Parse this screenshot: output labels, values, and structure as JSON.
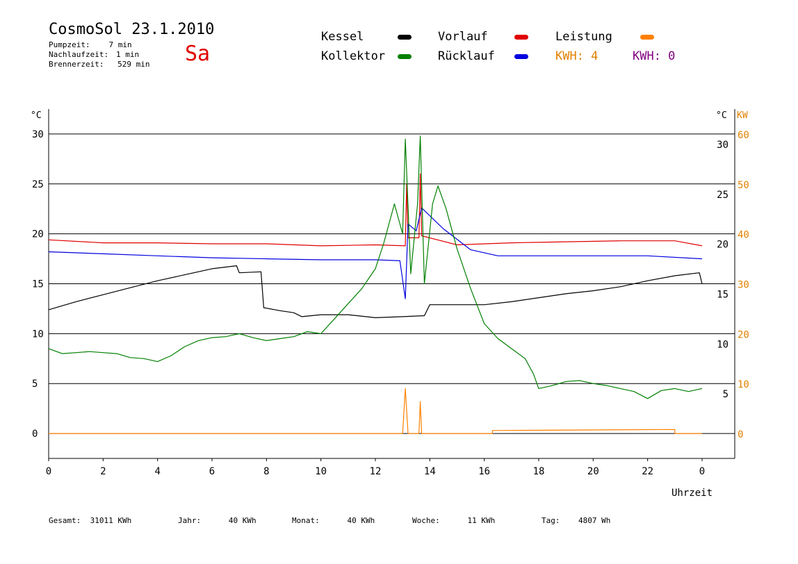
{
  "header": {
    "title": "CosmoSol 23.1.2010",
    "day": "Sa",
    "stats": [
      {
        "label": "Pumpzeit:",
        "value": "7 min"
      },
      {
        "label": "Nachlaufzeit:",
        "value": "1 min"
      },
      {
        "label": "Brennerzeit:",
        "value": "529 min"
      }
    ]
  },
  "legend": {
    "kessel": {
      "label": "Kessel",
      "color": "#000000"
    },
    "vorlauf": {
      "label": "Vorlauf",
      "color": "#e00000"
    },
    "leistung": {
      "label": "Leistung",
      "color": "#ff8000"
    },
    "kollektor": {
      "label": "Kollektor",
      "color": "#008000"
    },
    "ruecklauf": {
      "label": "Rücklauf",
      "color": "#0000e0"
    },
    "kwh1": {
      "label": "KWH: 4",
      "color": "#e08000"
    },
    "kwh2": {
      "label": "KWH: 0",
      "color": "#800080"
    }
  },
  "footer": [
    {
      "label": "Gesamt:",
      "value": "31011 KWh"
    },
    {
      "label": "Jahr:",
      "value": "40 KWh"
    },
    {
      "label": "Monat:",
      "value": "40 KWh"
    },
    {
      "label": "Woche:",
      "value": "11 KWh"
    },
    {
      "label": "Tag:",
      "value": "4807 Wh"
    }
  ],
  "chart_data": {
    "type": "line",
    "xlabel": "Uhrzeit",
    "ylabel_left": "°C",
    "ylabel_right": "°C",
    "ylabel_right2": "KW",
    "xlim": [
      0,
      24
    ],
    "ylim": [
      -2.5,
      32.5
    ],
    "x_ticks": [
      "0",
      "2",
      "4",
      "6",
      "8",
      "10",
      "12",
      "14",
      "16",
      "18",
      "20",
      "22",
      "0"
    ],
    "y_ticks": [
      0,
      5,
      10,
      15,
      20,
      25,
      30
    ],
    "y_ticks_right": [
      5,
      10,
      15,
      20,
      25,
      30
    ],
    "y_ticks_kw": [
      0,
      10,
      20,
      30,
      40,
      50,
      60
    ],
    "grid": "horizontal",
    "series": [
      {
        "name": "Kessel",
        "color": "#000000",
        "points": [
          [
            0,
            12.4
          ],
          [
            1,
            13.2
          ],
          [
            2,
            13.9
          ],
          [
            3,
            14.6
          ],
          [
            4,
            15.3
          ],
          [
            5,
            15.9
          ],
          [
            6,
            16.5
          ],
          [
            6.9,
            16.8
          ],
          [
            7,
            16.1
          ],
          [
            7.8,
            16.2
          ],
          [
            7.9,
            12.6
          ],
          [
            8.5,
            12.3
          ],
          [
            9,
            12.1
          ],
          [
            9.3,
            11.7
          ],
          [
            10,
            11.9
          ],
          [
            11,
            11.9
          ],
          [
            12,
            11.6
          ],
          [
            13,
            11.7
          ],
          [
            13.8,
            11.8
          ],
          [
            14,
            12.9
          ],
          [
            15,
            12.9
          ],
          [
            16,
            12.9
          ],
          [
            17,
            13.2
          ],
          [
            18,
            13.6
          ],
          [
            19,
            14.0
          ],
          [
            20,
            14.3
          ],
          [
            21,
            14.7
          ],
          [
            22,
            15.3
          ],
          [
            23,
            15.8
          ],
          [
            23.9,
            16.1
          ],
          [
            24,
            15.0
          ]
        ]
      },
      {
        "name": "Vorlauf",
        "color": "#e00000",
        "points": [
          [
            0,
            19.4
          ],
          [
            2,
            19.1
          ],
          [
            4,
            19.1
          ],
          [
            6,
            19.0
          ],
          [
            8,
            19.0
          ],
          [
            10,
            18.8
          ],
          [
            12,
            18.9
          ],
          [
            13.1,
            18.8
          ],
          [
            13.15,
            25.0
          ],
          [
            13.2,
            19.6
          ],
          [
            13.6,
            19.6
          ],
          [
            13.65,
            26.0
          ],
          [
            13.7,
            19.8
          ],
          [
            15,
            18.9
          ],
          [
            17,
            19.1
          ],
          [
            19,
            19.2
          ],
          [
            21,
            19.3
          ],
          [
            23,
            19.3
          ],
          [
            24,
            18.8
          ]
        ]
      },
      {
        "name": "Rücklauf",
        "color": "#0000e0",
        "points": [
          [
            0,
            18.2
          ],
          [
            2,
            18.0
          ],
          [
            4,
            17.8
          ],
          [
            6,
            17.6
          ],
          [
            8,
            17.5
          ],
          [
            10,
            17.4
          ],
          [
            12,
            17.4
          ],
          [
            12.9,
            17.3
          ],
          [
            13.1,
            13.5
          ],
          [
            13.2,
            21.0
          ],
          [
            13.5,
            20.3
          ],
          [
            13.7,
            22.6
          ],
          [
            14.5,
            20.5
          ],
          [
            15.5,
            18.4
          ],
          [
            16.5,
            17.8
          ],
          [
            18,
            17.8
          ],
          [
            20,
            17.8
          ],
          [
            22,
            17.8
          ],
          [
            24,
            17.5
          ]
        ]
      },
      {
        "name": "Kollektor",
        "color": "#008000",
        "points": [
          [
            0,
            8.5
          ],
          [
            0.5,
            8.0
          ],
          [
            1,
            8.1
          ],
          [
            1.5,
            8.2
          ],
          [
            2,
            8.1
          ],
          [
            2.5,
            8.0
          ],
          [
            3,
            7.6
          ],
          [
            3.5,
            7.5
          ],
          [
            4,
            7.2
          ],
          [
            4.5,
            7.8
          ],
          [
            5,
            8.7
          ],
          [
            5.5,
            9.3
          ],
          [
            6,
            9.6
          ],
          [
            6.5,
            9.7
          ],
          [
            7,
            10.0
          ],
          [
            7.5,
            9.6
          ],
          [
            8,
            9.3
          ],
          [
            8.5,
            9.5
          ],
          [
            9,
            9.7
          ],
          [
            9.5,
            10.2
          ],
          [
            10,
            10.0
          ],
          [
            10.5,
            11.5
          ],
          [
            11,
            13.0
          ],
          [
            11.5,
            14.5
          ],
          [
            12,
            16.5
          ],
          [
            12.3,
            19.0
          ],
          [
            12.7,
            23.0
          ],
          [
            13,
            20.0
          ],
          [
            13.1,
            29.5
          ],
          [
            13.3,
            16.0
          ],
          [
            13.55,
            23.0
          ],
          [
            13.65,
            29.8
          ],
          [
            13.8,
            15.0
          ],
          [
            14.1,
            23.0
          ],
          [
            14.3,
            24.8
          ],
          [
            14.6,
            22.5
          ],
          [
            15,
            18.5
          ],
          [
            15.5,
            14.5
          ],
          [
            16,
            11.0
          ],
          [
            16.5,
            9.5
          ],
          [
            17,
            8.5
          ],
          [
            17.5,
            7.5
          ],
          [
            17.8,
            6.0
          ],
          [
            18,
            4.5
          ],
          [
            18.5,
            4.8
          ],
          [
            19,
            5.2
          ],
          [
            19.5,
            5.3
          ],
          [
            20,
            5.0
          ],
          [
            20.5,
            4.8
          ],
          [
            21,
            4.5
          ],
          [
            21.5,
            4.2
          ],
          [
            22,
            3.5
          ],
          [
            22.5,
            4.3
          ],
          [
            23,
            4.5
          ],
          [
            23.5,
            4.2
          ],
          [
            24,
            4.5
          ]
        ]
      },
      {
        "name": "Leistung",
        "color": "#ff8000",
        "points": [
          [
            0,
            0
          ],
          [
            13.0,
            0
          ],
          [
            13.1,
            4.5
          ],
          [
            13.2,
            0
          ],
          [
            13.6,
            0
          ],
          [
            13.65,
            3.2
          ],
          [
            13.7,
            0
          ],
          [
            16.3,
            0
          ],
          [
            16.3,
            0.3
          ],
          [
            23,
            0.4
          ],
          [
            23,
            0
          ],
          [
            24,
            0
          ]
        ]
      }
    ]
  }
}
